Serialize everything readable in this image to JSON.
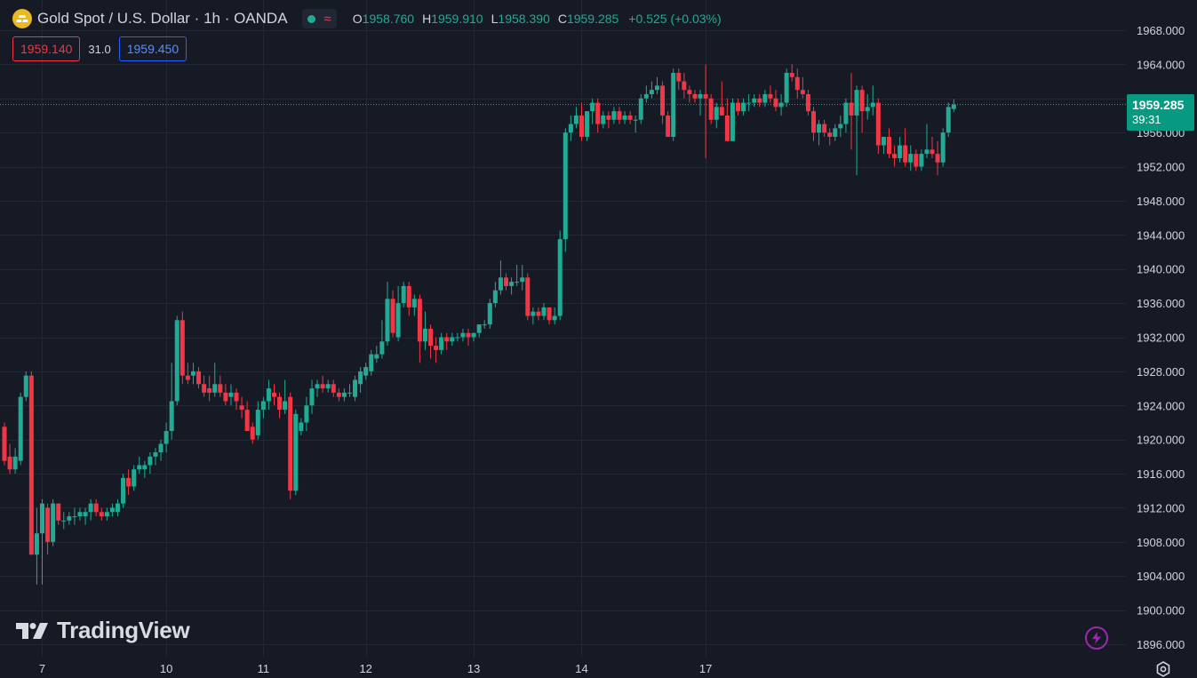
{
  "header": {
    "title": "Gold Spot / U.S. Dollar · 1h · OANDA",
    "ohlc": [
      {
        "label": "O",
        "value": "1958.760"
      },
      {
        "label": "H",
        "value": "1959.910"
      },
      {
        "label": "L",
        "value": "1958.390"
      },
      {
        "label": "C",
        "value": "1959.285"
      }
    ],
    "change": "+0.525 (+0.03%)",
    "status_icon": "market-open-dot-icon",
    "delay_icon": "approx-icon"
  },
  "quote": {
    "sell": "1959.140",
    "spread": "31.0",
    "buy": "1959.450"
  },
  "price_tag": {
    "price": "1959.285",
    "countdown": "39:31"
  },
  "watermark": {
    "text": "TradingView"
  },
  "colors": {
    "background": "#161a25",
    "grid": "#232733",
    "up": "#22ab94",
    "down": "#f23645",
    "text": "#d1d4dc",
    "tag": "#089981"
  },
  "chart_data": {
    "type": "candlestick",
    "y_ticks": [
      "1968.000",
      "1964.000",
      "1960.000",
      "1956.000",
      "1952.000",
      "1948.000",
      "1944.000",
      "1940.000",
      "1936.000",
      "1932.000",
      "1928.000",
      "1924.000",
      "1920.000",
      "1916.000",
      "1912.000",
      "1908.000",
      "1904.000",
      "1900.000",
      "1896.000"
    ],
    "ylim": [
      1896,
      1968
    ],
    "x_labels": [
      "7",
      "10",
      "11",
      "12",
      "13",
      "14",
      "17"
    ],
    "x_label_positions": [
      7,
      30,
      48,
      67,
      87,
      107,
      130
    ],
    "last_price": 1959.285,
    "grid": true,
    "candles": [
      [
        1921.5,
        1922.0,
        1917.0,
        1917.5
      ],
      [
        1918.0,
        1919.5,
        1916.0,
        1916.5
      ],
      [
        1916.5,
        1919.0,
        1916.0,
        1918.0
      ],
      [
        1917.5,
        1925.5,
        1917.0,
        1925.0
      ],
      [
        1925.0,
        1928.0,
        1924.5,
        1927.5
      ],
      [
        1927.5,
        1928.0,
        1906.5,
        1906.5
      ],
      [
        1906.5,
        1912.0,
        1903.0,
        1909.0
      ],
      [
        1909.0,
        1913.0,
        1903.0,
        1912.5
      ],
      [
        1912.0,
        1912.5,
        1906.5,
        1908.0
      ],
      [
        1908.0,
        1913.0,
        1907.5,
        1912.5
      ],
      [
        1912.5,
        1912.5,
        1910.0,
        1910.5
      ],
      [
        1910.5,
        1911.5,
        1909.5,
        1910.5
      ],
      [
        1910.5,
        1911.5,
        1910.0,
        1911.0
      ],
      [
        1911.0,
        1912.0,
        1910.0,
        1911.0
      ],
      [
        1911.0,
        1912.0,
        1910.5,
        1911.5
      ],
      [
        1911.0,
        1912.0,
        1910.0,
        1911.5
      ],
      [
        1911.5,
        1913.0,
        1910.5,
        1912.5
      ],
      [
        1912.5,
        1913.0,
        1911.0,
        1911.5
      ],
      [
        1911.5,
        1912.0,
        1910.5,
        1911.0
      ],
      [
        1911.0,
        1912.0,
        1910.5,
        1911.5
      ],
      [
        1911.5,
        1912.5,
        1911.0,
        1912.0
      ],
      [
        1911.5,
        1913.0,
        1911.0,
        1912.5
      ],
      [
        1912.5,
        1916.0,
        1912.0,
        1915.5
      ],
      [
        1915.5,
        1916.5,
        1913.5,
        1914.5
      ],
      [
        1914.5,
        1917.0,
        1914.0,
        1916.5
      ],
      [
        1916.5,
        1918.0,
        1916.0,
        1917.0
      ],
      [
        1916.5,
        1917.5,
        1915.5,
        1917.0
      ],
      [
        1917.0,
        1918.5,
        1916.0,
        1918.0
      ],
      [
        1918.0,
        1919.0,
        1917.0,
        1918.5
      ],
      [
        1918.5,
        1920.0,
        1917.5,
        1919.5
      ],
      [
        1919.5,
        1922.0,
        1918.5,
        1921.0
      ],
      [
        1921.0,
        1929.0,
        1920.0,
        1924.5
      ],
      [
        1924.5,
        1934.5,
        1924.0,
        1934.0
      ],
      [
        1934.0,
        1935.0,
        1926.5,
        1927.5
      ],
      [
        1927.5,
        1929.0,
        1926.5,
        1927.0
      ],
      [
        1927.5,
        1929.0,
        1926.5,
        1928.0
      ],
      [
        1928.0,
        1928.5,
        1926.0,
        1926.5
      ],
      [
        1926.5,
        1927.5,
        1925.0,
        1925.5
      ],
      [
        1926.0,
        1927.5,
        1924.5,
        1925.5
      ],
      [
        1925.5,
        1929.0,
        1925.0,
        1926.5
      ],
      [
        1926.5,
        1927.5,
        1925.0,
        1925.5
      ],
      [
        1925.5,
        1926.5,
        1924.0,
        1924.5
      ],
      [
        1925.0,
        1926.5,
        1924.0,
        1925.5
      ],
      [
        1925.5,
        1926.0,
        1923.5,
        1924.5
      ],
      [
        1924.0,
        1925.0,
        1922.5,
        1923.5
      ],
      [
        1923.5,
        1924.5,
        1921.0,
        1921.0
      ],
      [
        1921.5,
        1922.0,
        1919.5,
        1920.0
      ],
      [
        1920.5,
        1924.5,
        1920.0,
        1923.5
      ],
      [
        1923.5,
        1925.0,
        1922.5,
        1924.5
      ],
      [
        1924.5,
        1927.0,
        1923.5,
        1926.0
      ],
      [
        1925.5,
        1926.5,
        1924.0,
        1925.0
      ],
      [
        1925.0,
        1925.5,
        1922.5,
        1923.5
      ],
      [
        1923.5,
        1927.0,
        1923.0,
        1924.5
      ],
      [
        1925.0,
        1925.5,
        1913.0,
        1914.0
      ],
      [
        1914.0,
        1923.5,
        1913.5,
        1923.0
      ],
      [
        1921.0,
        1922.5,
        1920.5,
        1922.0
      ],
      [
        1922.0,
        1925.0,
        1921.0,
        1924.0
      ],
      [
        1924.0,
        1927.0,
        1923.0,
        1926.0
      ],
      [
        1926.0,
        1927.0,
        1925.0,
        1926.5
      ],
      [
        1926.5,
        1927.5,
        1925.5,
        1926.0
      ],
      [
        1926.0,
        1927.0,
        1925.5,
        1926.5
      ],
      [
        1926.5,
        1927.0,
        1925.0,
        1925.5
      ],
      [
        1925.5,
        1926.0,
        1924.5,
        1925.0
      ],
      [
        1925.0,
        1926.0,
        1924.5,
        1925.5
      ],
      [
        1925.5,
        1926.5,
        1925.0,
        1925.5
      ],
      [
        1925.0,
        1927.5,
        1924.5,
        1927.0
      ],
      [
        1926.5,
        1928.5,
        1925.5,
        1928.0
      ],
      [
        1927.5,
        1929.0,
        1927.0,
        1928.5
      ],
      [
        1928.0,
        1930.5,
        1927.5,
        1930.0
      ],
      [
        1929.5,
        1931.0,
        1929.0,
        1930.0
      ],
      [
        1930.0,
        1934.0,
        1929.5,
        1931.5
      ],
      [
        1931.5,
        1938.5,
        1931.0,
        1936.5
      ],
      [
        1936.5,
        1937.5,
        1932.0,
        1932.5
      ],
      [
        1932.0,
        1938.0,
        1931.5,
        1936.0
      ],
      [
        1936.0,
        1938.5,
        1935.5,
        1938.0
      ],
      [
        1938.0,
        1938.5,
        1934.5,
        1935.5
      ],
      [
        1935.5,
        1937.0,
        1934.5,
        1936.5
      ],
      [
        1936.5,
        1937.0,
        1929.0,
        1931.5
      ],
      [
        1931.5,
        1935.0,
        1930.5,
        1933.0
      ],
      [
        1933.0,
        1933.5,
        1929.5,
        1931.0
      ],
      [
        1931.0,
        1932.0,
        1929.0,
        1930.5
      ],
      [
        1930.5,
        1932.5,
        1930.0,
        1932.0
      ],
      [
        1932.0,
        1932.5,
        1930.5,
        1931.5
      ],
      [
        1931.5,
        1932.5,
        1931.0,
        1932.0
      ],
      [
        1932.0,
        1932.5,
        1931.5,
        1932.0
      ],
      [
        1932.0,
        1933.0,
        1931.5,
        1932.5
      ],
      [
        1932.5,
        1933.0,
        1931.0,
        1932.0
      ],
      [
        1932.0,
        1932.5,
        1931.5,
        1932.5
      ],
      [
        1932.5,
        1933.5,
        1932.0,
        1933.5
      ],
      [
        1933.5,
        1934.0,
        1933.0,
        1933.5
      ],
      [
        1933.5,
        1936.5,
        1933.0,
        1936.0
      ],
      [
        1936.0,
        1938.5,
        1935.5,
        1937.5
      ],
      [
        1937.5,
        1941.0,
        1937.0,
        1939.0
      ],
      [
        1939.0,
        1939.5,
        1937.5,
        1938.0
      ],
      [
        1938.0,
        1939.0,
        1937.0,
        1938.5
      ],
      [
        1938.5,
        1940.5,
        1938.0,
        1938.5
      ],
      [
        1938.5,
        1940.5,
        1937.5,
        1939.0
      ],
      [
        1939.0,
        1939.5,
        1934.0,
        1934.5
      ],
      [
        1934.5,
        1935.5,
        1933.5,
        1935.0
      ],
      [
        1935.0,
        1935.5,
        1934.0,
        1934.5
      ],
      [
        1934.5,
        1936.0,
        1934.0,
        1935.5
      ],
      [
        1935.5,
        1935.5,
        1933.5,
        1934.0
      ],
      [
        1934.0,
        1935.5,
        1933.5,
        1934.5
      ],
      [
        1934.5,
        1944.5,
        1934.0,
        1943.5
      ],
      [
        1943.5,
        1956.5,
        1942.0,
        1956.0
      ],
      [
        1956.0,
        1958.0,
        1955.0,
        1957.0
      ],
      [
        1957.0,
        1959.0,
        1956.5,
        1958.0
      ],
      [
        1958.0,
        1959.5,
        1955.0,
        1955.5
      ],
      [
        1955.5,
        1958.5,
        1955.0,
        1958.5
      ],
      [
        1958.5,
        1960.0,
        1957.0,
        1959.5
      ],
      [
        1959.5,
        1960.0,
        1956.0,
        1957.0
      ],
      [
        1957.0,
        1958.5,
        1956.5,
        1958.0
      ],
      [
        1958.0,
        1958.5,
        1956.5,
        1957.5
      ],
      [
        1957.5,
        1959.0,
        1957.0,
        1958.5
      ],
      [
        1958.5,
        1959.0,
        1957.0,
        1957.5
      ],
      [
        1957.5,
        1958.5,
        1957.0,
        1958.0
      ],
      [
        1958.0,
        1958.5,
        1957.0,
        1957.5
      ],
      [
        1957.5,
        1958.0,
        1956.0,
        1957.5
      ],
      [
        1957.5,
        1960.5,
        1957.0,
        1960.0
      ],
      [
        1960.0,
        1961.5,
        1959.5,
        1960.5
      ],
      [
        1960.5,
        1962.0,
        1960.0,
        1961.0
      ],
      [
        1961.0,
        1962.5,
        1960.5,
        1961.5
      ],
      [
        1961.5,
        1962.0,
        1957.0,
        1958.0
      ],
      [
        1958.0,
        1958.5,
        1955.5,
        1955.5
      ],
      [
        1955.5,
        1963.5,
        1955.0,
        1963.0
      ],
      [
        1963.0,
        1963.5,
        1961.0,
        1962.0
      ],
      [
        1962.0,
        1963.0,
        1960.0,
        1961.0
      ],
      [
        1961.0,
        1961.5,
        1959.5,
        1960.5
      ],
      [
        1960.5,
        1961.0,
        1959.5,
        1960.0
      ],
      [
        1960.0,
        1961.0,
        1958.0,
        1960.5
      ],
      [
        1960.5,
        1964.0,
        1953.0,
        1960.0
      ],
      [
        1960.0,
        1960.5,
        1957.0,
        1957.5
      ],
      [
        1957.5,
        1959.5,
        1956.5,
        1959.0
      ],
      [
        1959.0,
        1962.0,
        1958.5,
        1958.0
      ],
      [
        1958.0,
        1960.0,
        1955.0,
        1955.0
      ],
      [
        1955.0,
        1960.0,
        1955.0,
        1959.5
      ],
      [
        1959.5,
        1960.0,
        1958.0,
        1958.5
      ],
      [
        1958.5,
        1960.0,
        1958.0,
        1959.5
      ],
      [
        1959.5,
        1960.5,
        1958.5,
        1959.5
      ],
      [
        1959.5,
        1960.5,
        1959.0,
        1960.0
      ],
      [
        1960.0,
        1960.5,
        1959.0,
        1959.5
      ],
      [
        1959.5,
        1961.0,
        1959.0,
        1960.5
      ],
      [
        1960.5,
        1961.5,
        1959.5,
        1960.0
      ],
      [
        1960.0,
        1961.0,
        1958.5,
        1959.0
      ],
      [
        1959.0,
        1960.5,
        1958.0,
        1959.5
      ],
      [
        1959.5,
        1963.5,
        1959.0,
        1963.0
      ],
      [
        1963.0,
        1964.0,
        1962.0,
        1962.5
      ],
      [
        1962.5,
        1963.5,
        1960.0,
        1961.0
      ],
      [
        1961.0,
        1962.5,
        1960.0,
        1960.5
      ],
      [
        1960.5,
        1961.0,
        1958.0,
        1958.5
      ],
      [
        1958.5,
        1959.0,
        1955.0,
        1956.0
      ],
      [
        1956.0,
        1957.5,
        1954.5,
        1957.0
      ],
      [
        1957.0,
        1957.5,
        1955.5,
        1956.0
      ],
      [
        1956.0,
        1956.5,
        1954.5,
        1955.5
      ],
      [
        1955.5,
        1957.0,
        1955.0,
        1956.5
      ],
      [
        1956.5,
        1958.0,
        1955.5,
        1957.0
      ],
      [
        1957.0,
        1960.0,
        1956.0,
        1959.5
      ],
      [
        1959.5,
        1963.0,
        1954.0,
        1958.0
      ],
      [
        1958.0,
        1961.5,
        1951.0,
        1961.0
      ],
      [
        1961.0,
        1961.5,
        1956.0,
        1958.5
      ],
      [
        1958.5,
        1960.5,
        1957.5,
        1959.0
      ],
      [
        1959.0,
        1961.5,
        1958.0,
        1959.5
      ],
      [
        1959.5,
        1960.0,
        1953.5,
        1954.5
      ],
      [
        1954.5,
        1955.5,
        1953.5,
        1955.5
      ],
      [
        1955.5,
        1956.5,
        1953.0,
        1953.5
      ],
      [
        1953.5,
        1954.5,
        1952.0,
        1953.0
      ],
      [
        1953.0,
        1955.5,
        1952.5,
        1954.5
      ],
      [
        1954.5,
        1956.5,
        1952.0,
        1952.5
      ],
      [
        1952.5,
        1954.5,
        1951.5,
        1953.5
      ],
      [
        1953.5,
        1954.0,
        1951.5,
        1952.0
      ],
      [
        1952.0,
        1954.0,
        1951.5,
        1953.5
      ],
      [
        1953.5,
        1957.0,
        1953.0,
        1954.0
      ],
      [
        1954.0,
        1955.5,
        1953.0,
        1953.5
      ],
      [
        1953.5,
        1955.0,
        1951.0,
        1952.5
      ],
      [
        1952.5,
        1956.5,
        1952.0,
        1956.0
      ],
      [
        1956.0,
        1959.5,
        1955.5,
        1959.0
      ],
      [
        1958.76,
        1959.91,
        1958.39,
        1959.285
      ]
    ]
  }
}
